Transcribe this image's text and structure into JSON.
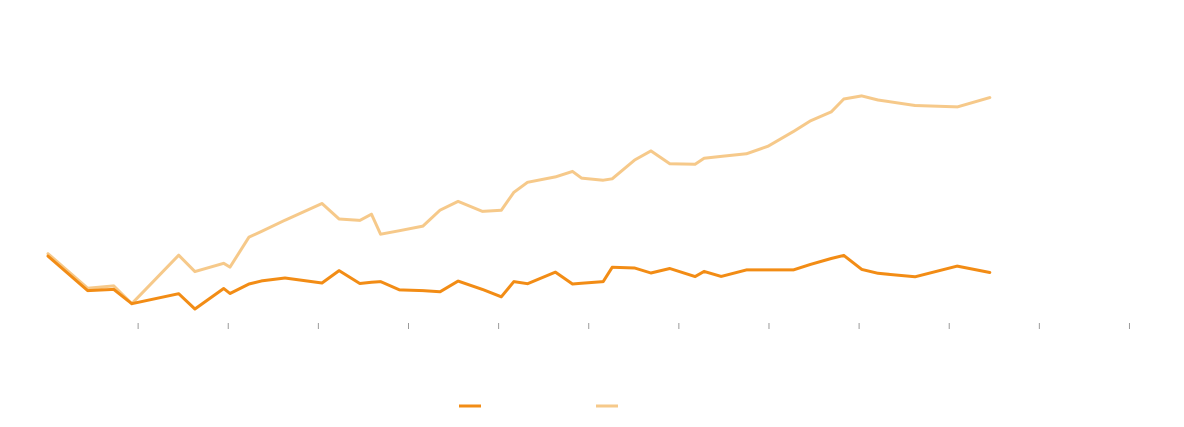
{
  "chart_data": {
    "type": "line",
    "title": "",
    "xlabel": "",
    "ylabel": "",
    "x": [
      0,
      4.4,
      7.3,
      9.3,
      14.5,
      16.3,
      19.5,
      20.2,
      22.3,
      23.7,
      26.3,
      30.4,
      32.3,
      34.6,
      35.9,
      36.9,
      39,
      41.6,
      43.5,
      45.5,
      48.2,
      50.3,
      51.7,
      53.2,
      56.3,
      58.2,
      59.2,
      61.6,
      62.6,
      65.1,
      66.9,
      69,
      71.8,
      72.8,
      74.7,
      77.5,
      79.9,
      82.7,
      84.6,
      86.9,
      88.3,
      90.3,
      92.1,
      96.2,
      100.9,
      104.5,
      107.8,
      110.5,
      114.3,
      116.7,
      121.5,
      122.5
    ],
    "xlim": [
      0,
      122.5
    ],
    "ylim": [
      0,
      100
    ],
    "show_axis_line": false,
    "show_grid": false,
    "legend_position": "bottom",
    "x_tick_positions": [
      10,
      20,
      30,
      40,
      50,
      60,
      70,
      80,
      90,
      100,
      110,
      120
    ],
    "series": [
      {
        "color": "#F28C15",
        "values": [
          26,
          11.5,
          12,
          6,
          10.2,
          3.8,
          12.4,
          10.3,
          14.3,
          15.6,
          16.8,
          14.7,
          19.9,
          14.5,
          15,
          15.3,
          11.8,
          11.5,
          11,
          15.5,
          12,
          8.9,
          15.3,
          14.4,
          19.3,
          14.3,
          14.6,
          15.3,
          21.3,
          21,
          18.9,
          20.8,
          17.4,
          19.6,
          17.5,
          20.2,
          20.2,
          20.2,
          22.5,
          25,
          26.3,
          20.4,
          18.8,
          17.3,
          21.8,
          19.1,
          null,
          null,
          null,
          null,
          null,
          null
        ]
      },
      {
        "color": "#F6C98A",
        "values": [
          27,
          12.5,
          13.5,
          6,
          26.4,
          19.5,
          23,
          21.4,
          34,
          36.4,
          41.1,
          48.1,
          41.6,
          41,
          43.6,
          35.2,
          36.7,
          38.6,
          45.3,
          49,
          44.8,
          45.3,
          52.8,
          57,
          59.3,
          61.6,
          58.8,
          57.9,
          58.5,
          66.4,
          70.2,
          64.8,
          64.6,
          67.1,
          67.9,
          69,
          72.2,
          78.3,
          82.8,
          86.6,
          92,
          93.3,
          91.6,
          89.3,
          88.7,
          92.6,
          null,
          null,
          null,
          null,
          null,
          null
        ]
      }
    ]
  }
}
